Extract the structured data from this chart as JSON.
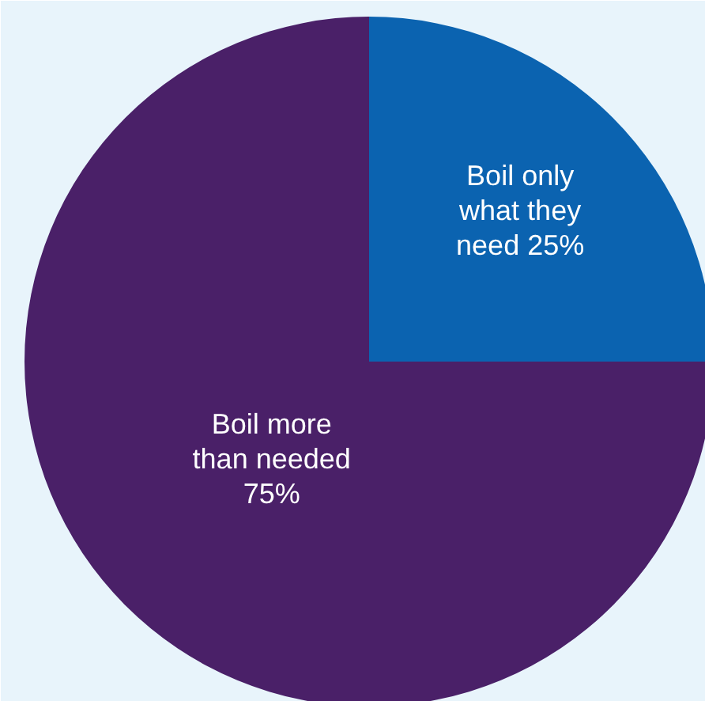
{
  "chart_data": {
    "type": "pie",
    "categories": [
      "Boil only what they need",
      "Boil more than needed"
    ],
    "values": [
      25,
      75
    ],
    "colors": [
      "#0b63b0",
      "#4a2068"
    ],
    "value_labels": [
      "25%",
      "75%"
    ]
  }
}
